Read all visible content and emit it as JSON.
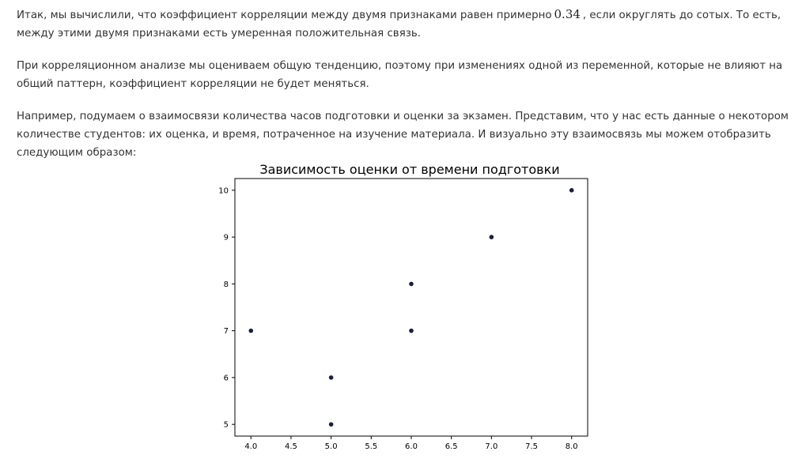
{
  "paragraphs": {
    "p1_before": "Итак, мы вычислили, что коэффициент корреляции между двумя признаками равен примерно",
    "p1_value": "0.34",
    "p1_after": ", если округлять до сотых. То есть, между этими двумя признаками есть умеренная положительная связь.",
    "p2": "При корреляционном анализе мы оцениваем общую тенденцию, поэтому при изменениях одной из переменной, которые не влияют на общий паттерн, коэффициент корреляции не будет меняться.",
    "p3": "Например, подумаем о взаимосвязи количества часов подготовки и оценки за экзамен. Представим, что у нас есть данные о некотором количестве студентов: их оценка, и время, потраченное на изучение материала. И визуально эту взаимосвязь мы можем отобразить следующим образом:"
  },
  "chart_data": {
    "type": "scatter",
    "title": "Зависимость оценки от времени подготовки",
    "xlabel": "",
    "ylabel": "",
    "x": [
      4,
      5,
      5,
      6,
      6,
      7,
      8
    ],
    "y": [
      7,
      6,
      5,
      7,
      8,
      9,
      10
    ],
    "xlim": [
      3.8,
      8.2
    ],
    "ylim": [
      4.75,
      10.25
    ],
    "xticks": [
      "4.0",
      "4.5",
      "5.0",
      "5.5",
      "6.0",
      "6.5",
      "7.0",
      "7.5",
      "8.0"
    ],
    "yticks": [
      "5",
      "6",
      "7",
      "8",
      "9",
      "10"
    ],
    "point_color": "#1a1f3a",
    "grid": false
  }
}
